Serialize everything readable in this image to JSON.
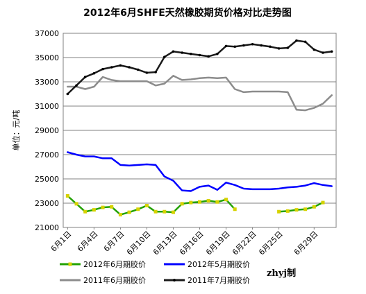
{
  "chart_data": {
    "type": "line",
    "title": "2012年6月SHFE天然橡胶期货价格对比走势图",
    "ylabel": "单位：元/吨",
    "xlabel": "",
    "ylim": [
      21000,
      37000
    ],
    "yticks": [
      21000,
      23000,
      25000,
      27000,
      29000,
      31000,
      33000,
      35000,
      37000
    ],
    "xticks": [
      "6月1日",
      "6月4日",
      "6月7日",
      "6月10日",
      "6月13日",
      "6月16日",
      "6月19日",
      "6月22日",
      "6月25日",
      "6月29日"
    ],
    "x_range": [
      1,
      31
    ],
    "grid": true,
    "legend_position": "bottom",
    "credit": "zhyj制",
    "series": [
      {
        "name": "2012年6月期胶价",
        "color": "#22a100",
        "marker": "#d6d200",
        "x": [
          1,
          2,
          3,
          4,
          5,
          6,
          7,
          8,
          9,
          10,
          11,
          12,
          13,
          14,
          15,
          16,
          17,
          18,
          19,
          20,
          21,
          22
        ],
        "values": [
          23600,
          22950,
          22300,
          22450,
          22650,
          22700,
          22050,
          22250,
          22500,
          22800,
          22300,
          22300,
          22250,
          22950,
          23050,
          23100,
          23200,
          23100,
          23300,
          22500,
          null,
          null
        ],
        "extra_x": [
          25,
          26,
          27,
          28,
          29,
          30
        ],
        "extra_values": [
          22300,
          22350,
          22450,
          22500,
          22700,
          23050
        ]
      },
      {
        "name": "2012年5月期胶价",
        "color": "#0000ff",
        "x": [
          1,
          2,
          3,
          4,
          5,
          6,
          7,
          8,
          9,
          10,
          11,
          12,
          13,
          14,
          15,
          16,
          17,
          18,
          19,
          20,
          21,
          22,
          23,
          24,
          25,
          26,
          27,
          28,
          29,
          30,
          31
        ],
        "values": [
          27200,
          27000,
          26850,
          26850,
          26700,
          26700,
          26150,
          26100,
          26150,
          26200,
          26150,
          25200,
          24850,
          24050,
          24000,
          24350,
          24450,
          24100,
          24700,
          24500,
          24200,
          24150,
          24150,
          24150,
          24200,
          24300,
          24350,
          24450,
          24650,
          24500,
          24400
        ]
      },
      {
        "name": "2011年6月期胶价",
        "color": "#8c8c8c",
        "x": [
          1,
          2,
          3,
          4,
          5,
          6,
          7,
          8,
          9,
          10,
          11,
          12,
          13,
          14,
          15,
          16,
          17,
          18,
          19,
          20,
          21,
          22,
          23,
          24,
          25,
          26,
          27,
          28,
          29,
          30,
          31
        ],
        "values": [
          32600,
          32600,
          32400,
          32600,
          33400,
          33150,
          33050,
          33050,
          33050,
          33050,
          32700,
          32850,
          33500,
          33150,
          33200,
          33300,
          33350,
          33300,
          33350,
          32400,
          32150,
          32200,
          32200,
          32200,
          32200,
          32150,
          30700,
          30650,
          30850,
          31200,
          31900
        ]
      },
      {
        "name": "2011年7月期胶价",
        "color": "#1a1a1a",
        "marker": "#000000",
        "x": [
          1,
          2,
          3,
          4,
          5,
          6,
          7,
          8,
          9,
          10,
          11,
          12,
          13,
          14,
          15,
          16,
          17,
          18,
          19,
          20,
          21,
          22,
          23,
          24,
          25,
          26,
          27,
          28,
          29,
          30,
          31
        ],
        "values": [
          32000,
          32700,
          33400,
          33700,
          34050,
          34200,
          34350,
          34200,
          34000,
          33750,
          33800,
          35050,
          35500,
          35400,
          35300,
          35200,
          35100,
          35300,
          35950,
          35900,
          36000,
          36100,
          36000,
          35900,
          35750,
          35800,
          36400,
          36300,
          35650,
          35400,
          35500
        ]
      }
    ]
  }
}
